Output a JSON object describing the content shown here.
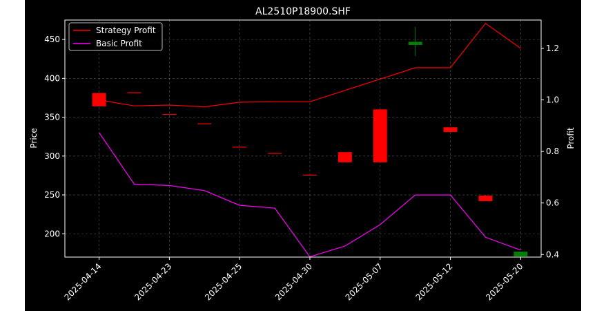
{
  "chart_data": {
    "type": "candlestick+line",
    "title": "AL2510P18900.SHF",
    "ylabel_left": "Price",
    "ylabel_right": "Profit",
    "ylim_left": [
      170,
      475
    ],
    "ylim_right": [
      0.39,
      1.31
    ],
    "yticks_left": [
      200,
      250,
      300,
      350,
      400,
      450
    ],
    "yticks_right": [
      0.4,
      0.6,
      0.8,
      1.0,
      1.2
    ],
    "xtick_labels": [
      "2025-04-14",
      "2025-04-23",
      "2025-04-25",
      "2025-04-30",
      "2025-05-07",
      "2025-05-12",
      "2025-05-20"
    ],
    "xtick_index": [
      0,
      2,
      4,
      6,
      8,
      10,
      12
    ],
    "grid": true,
    "legend_position": "top-left",
    "legend": [
      "Strategy Profit",
      "Basic Profit"
    ],
    "candles": [
      {
        "i": 0,
        "open": 381,
        "close": 364,
        "high": 381,
        "low": 364
      },
      {
        "i": 1,
        "open": 382,
        "close": 381,
        "high": 382,
        "low": 381
      },
      {
        "i": 2,
        "open": 354,
        "close": 353,
        "high": 354,
        "low": 353
      },
      {
        "i": 3,
        "open": 342,
        "close": 341,
        "high": 342,
        "low": 341
      },
      {
        "i": 4,
        "open": 312,
        "close": 311,
        "high": 312,
        "low": 311
      },
      {
        "i": 5,
        "open": 304,
        "close": 303,
        "high": 304,
        "low": 303
      },
      {
        "i": 6,
        "open": 276,
        "close": 275,
        "high": 276,
        "low": 275
      },
      {
        "i": 7,
        "open": 305,
        "close": 292,
        "high": 305,
        "low": 292
      },
      {
        "i": 8,
        "open": 360,
        "close": 292,
        "high": 360,
        "low": 292
      },
      {
        "i": 9,
        "open": 443,
        "close": 447,
        "high": 466,
        "low": 429
      },
      {
        "i": 10,
        "open": 337,
        "close": 331,
        "high": 337,
        "low": 331
      },
      {
        "i": 11,
        "open": 249,
        "close": 242,
        "high": 250,
        "low": 242
      },
      {
        "i": 12,
        "open": 171,
        "close": 177,
        "high": 177,
        "low": 171
      }
    ],
    "up_color": "#008000",
    "down_color": "#ff0000",
    "series": [
      {
        "name": "Strategy Profit",
        "color": "#ff0000",
        "values": [
          1.0,
          0.977,
          0.98,
          0.973,
          0.991,
          0.993,
          0.993,
          1.037,
          1.081,
          1.125,
          1.125,
          1.297,
          1.2
        ]
      },
      {
        "name": "Basic Profit",
        "color": "#ff00ff",
        "values": [
          0.873,
          0.673,
          0.668,
          0.648,
          0.591,
          0.58,
          0.391,
          0.433,
          0.516,
          0.631,
          0.631,
          0.467,
          0.417
        ]
      }
    ]
  }
}
